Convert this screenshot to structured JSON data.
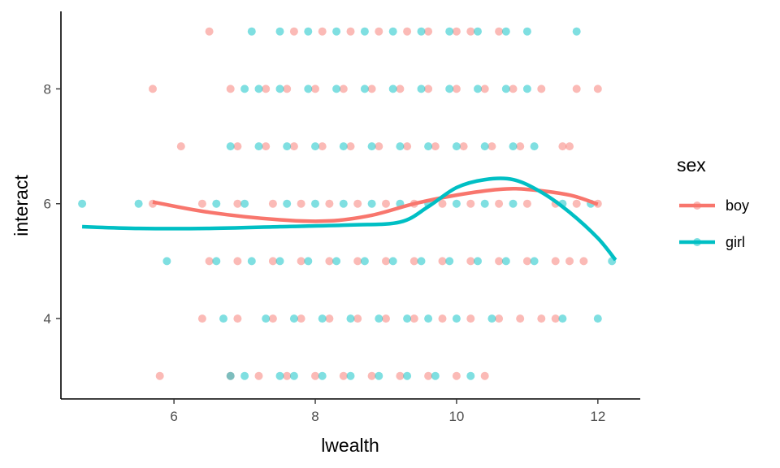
{
  "chart_data": {
    "type": "scatter",
    "xlabel": "lwealth",
    "ylabel": "interact",
    "xlim": [
      4.4,
      12.6
    ],
    "ylim": [
      2.6,
      9.35
    ],
    "x_ticks": [
      6,
      8,
      10,
      12
    ],
    "y_ticks": [
      4,
      6,
      8
    ],
    "grid": false,
    "legend": {
      "title": "sex",
      "placement": "right",
      "entries": [
        "boy",
        "girl"
      ]
    },
    "colors": {
      "boy": "#F8766D",
      "girl": "#00BFC4"
    },
    "series": [
      {
        "name": "boy",
        "color": "#F8766D",
        "points": [
          [
            6.5,
            9
          ],
          [
            7.7,
            9
          ],
          [
            8.1,
            9
          ],
          [
            8.5,
            9
          ],
          [
            8.9,
            9
          ],
          [
            9.3,
            9
          ],
          [
            9.6,
            9
          ],
          [
            10.0,
            9
          ],
          [
            10.2,
            9
          ],
          [
            10.6,
            9
          ],
          [
            5.7,
            8
          ],
          [
            6.8,
            8
          ],
          [
            7.3,
            8
          ],
          [
            7.6,
            8
          ],
          [
            8.0,
            8
          ],
          [
            8.4,
            8
          ],
          [
            8.8,
            8
          ],
          [
            9.2,
            8
          ],
          [
            9.6,
            8
          ],
          [
            10.0,
            8
          ],
          [
            10.4,
            8
          ],
          [
            10.8,
            8
          ],
          [
            11.2,
            8
          ],
          [
            11.7,
            8
          ],
          [
            12.0,
            8
          ],
          [
            6.1,
            7
          ],
          [
            6.9,
            7
          ],
          [
            7.3,
            7
          ],
          [
            7.7,
            7
          ],
          [
            8.1,
            7
          ],
          [
            8.5,
            7
          ],
          [
            8.9,
            7
          ],
          [
            9.3,
            7
          ],
          [
            9.7,
            7
          ],
          [
            10.1,
            7
          ],
          [
            10.5,
            7
          ],
          [
            10.9,
            7
          ],
          [
            11.5,
            7
          ],
          [
            11.6,
            7
          ],
          [
            5.7,
            6
          ],
          [
            6.4,
            6
          ],
          [
            6.9,
            6
          ],
          [
            7.4,
            6
          ],
          [
            7.8,
            6
          ],
          [
            8.2,
            6
          ],
          [
            8.6,
            6
          ],
          [
            9.0,
            6
          ],
          [
            9.4,
            6
          ],
          [
            9.8,
            6
          ],
          [
            10.2,
            6
          ],
          [
            10.6,
            6
          ],
          [
            11.0,
            6
          ],
          [
            11.4,
            6
          ],
          [
            11.7,
            6
          ],
          [
            12.0,
            6
          ],
          [
            6.5,
            5
          ],
          [
            6.9,
            5
          ],
          [
            7.4,
            5
          ],
          [
            7.8,
            5
          ],
          [
            8.2,
            5
          ],
          [
            8.6,
            5
          ],
          [
            9.0,
            5
          ],
          [
            9.4,
            5
          ],
          [
            9.8,
            5
          ],
          [
            10.2,
            5
          ],
          [
            10.6,
            5
          ],
          [
            11.0,
            5
          ],
          [
            11.4,
            5
          ],
          [
            11.6,
            5
          ],
          [
            11.8,
            5
          ],
          [
            6.4,
            4
          ],
          [
            6.9,
            4
          ],
          [
            7.4,
            4
          ],
          [
            7.8,
            4
          ],
          [
            8.2,
            4
          ],
          [
            8.6,
            4
          ],
          [
            9.0,
            4
          ],
          [
            9.4,
            4
          ],
          [
            9.8,
            4
          ],
          [
            10.2,
            4
          ],
          [
            10.6,
            4
          ],
          [
            10.9,
            4
          ],
          [
            11.2,
            4
          ],
          [
            11.4,
            4
          ],
          [
            5.8,
            3
          ],
          [
            6.8,
            3
          ],
          [
            7.2,
            3
          ],
          [
            7.6,
            3
          ],
          [
            8.0,
            3
          ],
          [
            8.4,
            3
          ],
          [
            8.8,
            3
          ],
          [
            9.2,
            3
          ],
          [
            9.6,
            3
          ],
          [
            10.0,
            3
          ],
          [
            10.4,
            3
          ]
        ],
        "smooth": [
          [
            5.7,
            6.03
          ],
          [
            6.5,
            5.85
          ],
          [
            7.5,
            5.72
          ],
          [
            8.2,
            5.7
          ],
          [
            8.8,
            5.8
          ],
          [
            9.4,
            6.0
          ],
          [
            10.0,
            6.15
          ],
          [
            10.6,
            6.25
          ],
          [
            11.0,
            6.25
          ],
          [
            11.6,
            6.15
          ],
          [
            12.0,
            5.99
          ]
        ]
      },
      {
        "name": "girl",
        "color": "#00BFC4",
        "points": [
          [
            7.1,
            9
          ],
          [
            7.5,
            9
          ],
          [
            7.9,
            9
          ],
          [
            8.3,
            9
          ],
          [
            8.7,
            9
          ],
          [
            9.1,
            9
          ],
          [
            9.5,
            9
          ],
          [
            9.9,
            9
          ],
          [
            10.3,
            9
          ],
          [
            10.7,
            9
          ],
          [
            11.0,
            9
          ],
          [
            11.7,
            9
          ],
          [
            7.0,
            8
          ],
          [
            7.2,
            8
          ],
          [
            7.5,
            8
          ],
          [
            7.9,
            8
          ],
          [
            8.3,
            8
          ],
          [
            8.7,
            8
          ],
          [
            9.1,
            8
          ],
          [
            9.5,
            8
          ],
          [
            9.9,
            8
          ],
          [
            10.3,
            8
          ],
          [
            10.7,
            8
          ],
          [
            11.0,
            8
          ],
          [
            6.8,
            7
          ],
          [
            7.2,
            7
          ],
          [
            7.6,
            7
          ],
          [
            8.0,
            7
          ],
          [
            8.4,
            7
          ],
          [
            8.8,
            7
          ],
          [
            9.2,
            7
          ],
          [
            9.6,
            7
          ],
          [
            10.0,
            7
          ],
          [
            10.4,
            7
          ],
          [
            10.8,
            7
          ],
          [
            11.1,
            7
          ],
          [
            4.7,
            6
          ],
          [
            5.5,
            6
          ],
          [
            6.6,
            6
          ],
          [
            7.0,
            6
          ],
          [
            7.6,
            6
          ],
          [
            8.0,
            6
          ],
          [
            8.4,
            6
          ],
          [
            8.8,
            6
          ],
          [
            9.2,
            6
          ],
          [
            9.6,
            6
          ],
          [
            10.0,
            6
          ],
          [
            10.4,
            6
          ],
          [
            10.8,
            6
          ],
          [
            11.5,
            6
          ],
          [
            11.9,
            6
          ],
          [
            5.9,
            5
          ],
          [
            6.6,
            5
          ],
          [
            7.1,
            5
          ],
          [
            7.5,
            5
          ],
          [
            7.9,
            5
          ],
          [
            8.3,
            5
          ],
          [
            8.7,
            5
          ],
          [
            9.1,
            5
          ],
          [
            9.5,
            5
          ],
          [
            9.9,
            5
          ],
          [
            10.3,
            5
          ],
          [
            10.7,
            5
          ],
          [
            11.1,
            5
          ],
          [
            12.2,
            5
          ],
          [
            6.7,
            4
          ],
          [
            7.3,
            4
          ],
          [
            7.7,
            4
          ],
          [
            8.1,
            4
          ],
          [
            8.5,
            4
          ],
          [
            8.9,
            4
          ],
          [
            9.3,
            4
          ],
          [
            9.6,
            4
          ],
          [
            10.0,
            4
          ],
          [
            10.5,
            4
          ],
          [
            11.5,
            4
          ],
          [
            12.0,
            4
          ],
          [
            6.8,
            3
          ],
          [
            7.0,
            3
          ],
          [
            7.5,
            3
          ],
          [
            7.7,
            3
          ],
          [
            8.1,
            3
          ],
          [
            8.5,
            3
          ],
          [
            8.9,
            3
          ],
          [
            9.3,
            3
          ],
          [
            9.7,
            3
          ],
          [
            10.2,
            3
          ]
        ],
        "smooth": [
          [
            4.7,
            5.6
          ],
          [
            5.5,
            5.57
          ],
          [
            6.5,
            5.57
          ],
          [
            7.5,
            5.6
          ],
          [
            8.5,
            5.63
          ],
          [
            9.2,
            5.68
          ],
          [
            9.6,
            5.95
          ],
          [
            10.0,
            6.28
          ],
          [
            10.4,
            6.42
          ],
          [
            10.8,
            6.42
          ],
          [
            11.2,
            6.2
          ],
          [
            11.6,
            5.85
          ],
          [
            12.0,
            5.4
          ],
          [
            12.25,
            5.02
          ]
        ]
      }
    ]
  }
}
